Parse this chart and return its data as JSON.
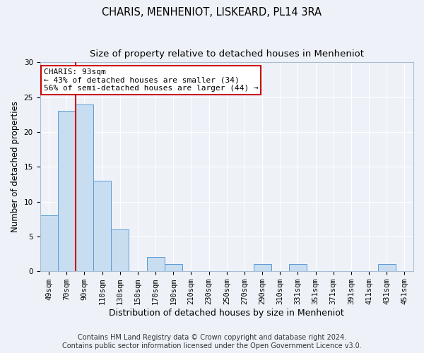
{
  "title1": "CHARIS, MENHENIOT, LISKEARD, PL14 3RA",
  "title2": "Size of property relative to detached houses in Menheniot",
  "xlabel": "Distribution of detached houses by size in Menheniot",
  "ylabel": "Number of detached properties",
  "bar_labels": [
    "49sqm",
    "70sqm",
    "90sqm",
    "110sqm",
    "130sqm",
    "150sqm",
    "170sqm",
    "190sqm",
    "210sqm",
    "230sqm",
    "250sqm",
    "270sqm",
    "290sqm",
    "310sqm",
    "331sqm",
    "351sqm",
    "371sqm",
    "391sqm",
    "411sqm",
    "431sqm",
    "451sqm"
  ],
  "bar_values": [
    8,
    23,
    24,
    13,
    6,
    0,
    2,
    1,
    0,
    0,
    0,
    0,
    1,
    0,
    1,
    0,
    0,
    0,
    0,
    1,
    0
  ],
  "bar_color": "#c9ddf0",
  "bar_edge_color": "#5b9bd5",
  "bar_edge_width": 0.7,
  "ylim": [
    0,
    30
  ],
  "yticks": [
    0,
    5,
    10,
    15,
    20,
    25,
    30
  ],
  "annotation_line1": "CHARIS: 93sqm",
  "annotation_line2": "← 43% of detached houses are smaller (34)",
  "annotation_line3": "56% of semi-detached houses are larger (44) →",
  "red_line_color": "#cc0000",
  "annotation_box_facecolor": "#ffffff",
  "annotation_box_edgecolor": "#cc0000",
  "footer1": "Contains HM Land Registry data © Crown copyright and database right 2024.",
  "footer2": "Contains public sector information licensed under the Open Government Licence v3.0.",
  "background_color": "#eef2f8",
  "grid_color": "#ffffff",
  "title1_fontsize": 10.5,
  "title2_fontsize": 9.5,
  "xlabel_fontsize": 9,
  "ylabel_fontsize": 8.5,
  "tick_fontsize": 7.5,
  "annotation_fontsize": 8,
  "footer_fontsize": 7
}
